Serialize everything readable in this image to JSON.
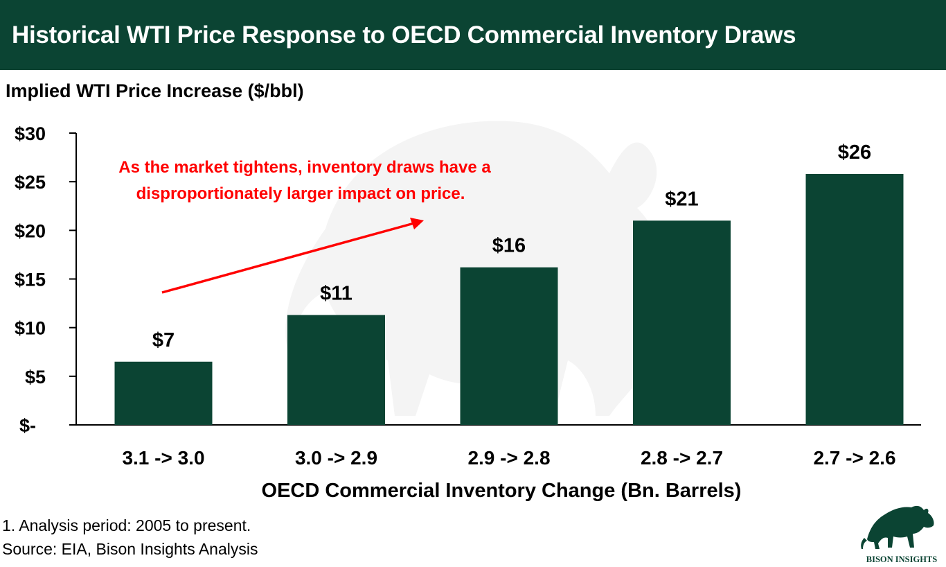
{
  "header": {
    "title": "Historical WTI Price Response to OECD Commercial Inventory Draws"
  },
  "colors": {
    "header_bg": "#0b4433",
    "bar": "#0b4433",
    "annotation": "#ff0000",
    "watermark": "#f3f3f3"
  },
  "chart_data": {
    "type": "bar",
    "title": "Historical WTI Price Response to OECD Commercial Inventory Draws",
    "ylabel": "Implied WTI Price Increase ($/bbl)",
    "xlabel": "OECD Commercial Inventory Change (Bn. Barrels)",
    "categories": [
      "3.1 -> 3.0",
      "3.0 -> 2.9",
      "2.9 -> 2.8",
      "2.8 -> 2.7",
      "2.7 -> 2.6"
    ],
    "values": [
      6.5,
      11.3,
      16.2,
      21.0,
      25.8
    ],
    "data_labels": [
      "$7",
      "$11",
      "$16",
      "$21",
      "$26"
    ],
    "ylim": [
      0,
      30
    ],
    "yticks": [
      0,
      5,
      10,
      15,
      20,
      25,
      30
    ],
    "ytick_labels": [
      "$-",
      "$5",
      "$10",
      "$15",
      "$20",
      "$25",
      "$30"
    ],
    "grid": false,
    "legend": "none",
    "annotation": {
      "lines": [
        "As the market tightens, inventory draws have a",
        "disproportionately larger impact on price."
      ],
      "arrow": "upward trend arrow pointing right"
    }
  },
  "footnotes": [
    "1. Analysis period: 2005 to present.",
    "Source: EIA, Bison Insights Analysis"
  ],
  "logo": {
    "icon": "bison-icon",
    "text": "BISON INSIGHTS"
  },
  "watermark": {
    "icon": "bison-watermark-icon"
  }
}
